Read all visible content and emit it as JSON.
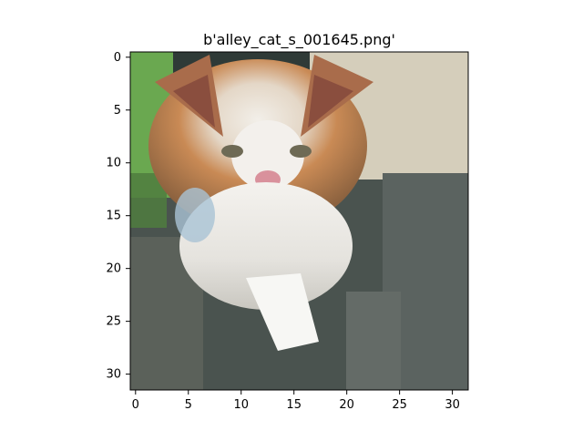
{
  "figure": {
    "title": "b'alley_cat_s_001645.png'"
  },
  "image": {
    "subject": "pixelated 32x32 photo of an orange and white kitten with a grey-green textured background",
    "grid_size": 32,
    "palette_notes": {
      "green_left": "#66a84f",
      "orange_fur": "#c98a55",
      "white_fur": "#eeeeea",
      "dark_background": "#3e4a45",
      "nose_pink": "#d9919c",
      "light_blue_shadow": "#a9c3d4"
    }
  },
  "axes": {
    "x_ticks": [
      "0",
      "5",
      "10",
      "15",
      "20",
      "25",
      "30"
    ],
    "y_ticks": [
      "0",
      "5",
      "10",
      "15",
      "20",
      "25",
      "30"
    ]
  }
}
